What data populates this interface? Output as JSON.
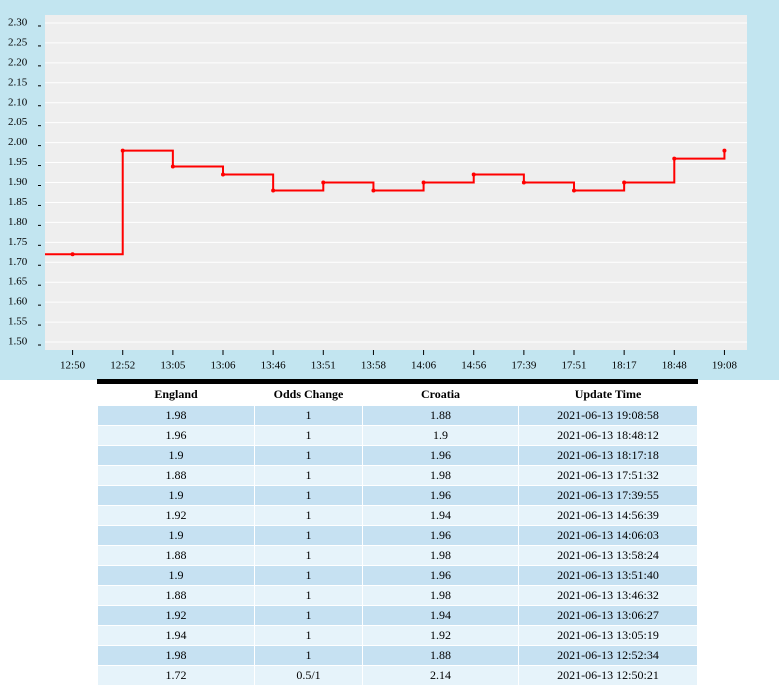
{
  "chart_data": {
    "type": "step-line",
    "categories": [
      "12:50",
      "12:52",
      "13:05",
      "13:06",
      "13:46",
      "13:51",
      "13:58",
      "14:06",
      "14:56",
      "17:39",
      "17:51",
      "18:17",
      "18:48",
      "19:08"
    ],
    "series": [
      {
        "color": "#ff0000",
        "values": [
          1.72,
          1.98,
          1.94,
          1.92,
          1.88,
          1.9,
          1.88,
          1.9,
          1.92,
          1.9,
          1.88,
          1.9,
          1.96,
          1.98
        ]
      }
    ],
    "ylim": [
      1.48,
      2.32
    ],
    "yticks": [
      {
        "value": 1.5,
        "label": "1.50"
      },
      1.55,
      {
        "value": 1.6,
        "label": "1.60"
      },
      1.65,
      {
        "value": 1.7,
        "label": "1.70"
      },
      1.75,
      {
        "value": 1.8,
        "label": "1.80"
      },
      1.85,
      {
        "value": 1.9,
        "label": "1.90"
      },
      1.95,
      {
        "value": 2.0,
        "label": "2.00"
      },
      2.05,
      {
        "value": 2.1,
        "label": "2.10"
      },
      2.15,
      {
        "value": 2.2,
        "label": "2.20"
      },
      2.25,
      {
        "value": 2.3,
        "label": "2.30"
      }
    ],
    "grid": true
  },
  "table": {
    "header": [
      "England",
      "Odds Change",
      "Croatia",
      "Update Time"
    ],
    "rows": [
      [
        "1.98",
        "1",
        "1.88",
        "2021-06-13 19:08:58"
      ],
      [
        "1.96",
        "1",
        "1.9",
        "2021-06-13 18:48:12"
      ],
      [
        "1.9",
        "1",
        "1.96",
        "2021-06-13 18:17:18"
      ],
      [
        "1.88",
        "1",
        "1.98",
        "2021-06-13 17:51:32"
      ],
      [
        "1.9",
        "1",
        "1.96",
        "2021-06-13 17:39:55"
      ],
      [
        "1.92",
        "1",
        "1.94",
        "2021-06-13 14:56:39"
      ],
      [
        "1.9",
        "1",
        "1.96",
        "2021-06-13 14:06:03"
      ],
      [
        "1.88",
        "1",
        "1.98",
        "2021-06-13 13:58:24"
      ],
      [
        "1.9",
        "1",
        "1.96",
        "2021-06-13 13:51:40"
      ],
      [
        "1.88",
        "1",
        "1.98",
        "2021-06-13 13:46:32"
      ],
      [
        "1.92",
        "1",
        "1.94",
        "2021-06-13 13:06:27"
      ],
      [
        "1.94",
        "1",
        "1.92",
        "2021-06-13 13:05:19"
      ],
      [
        "1.98",
        "1",
        "1.88",
        "2021-06-13 12:52:34"
      ],
      [
        "1.72",
        "0.5/1",
        "2.14",
        "2021-06-13 12:50:21"
      ]
    ]
  }
}
